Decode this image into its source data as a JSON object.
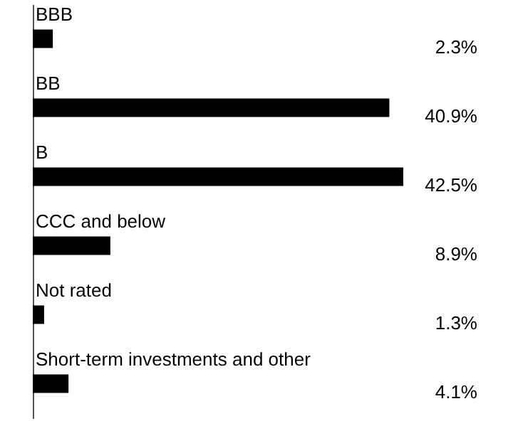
{
  "chart_data": {
    "type": "bar",
    "orientation": "horizontal",
    "categories": [
      "BBB",
      "BB",
      "B",
      "CCC and below",
      "Not rated",
      "Short-term investments and other"
    ],
    "values": [
      2.3,
      40.9,
      42.5,
      8.9,
      1.3,
      4.1
    ],
    "value_labels": [
      "2.3%",
      "40.9%",
      "42.5%",
      "8.9%",
      "1.3%",
      "4.1%"
    ],
    "color": "#000000"
  }
}
